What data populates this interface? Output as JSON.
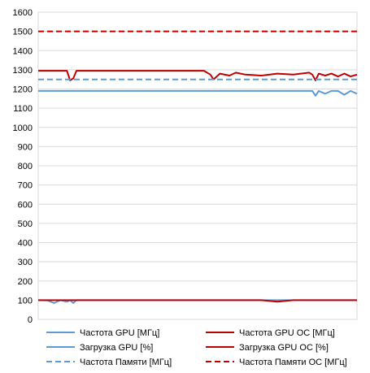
{
  "chart_data": {
    "type": "line",
    "ylim": [
      0,
      1600
    ],
    "yticks": [
      0,
      100,
      200,
      300,
      400,
      500,
      600,
      700,
      800,
      900,
      1000,
      1100,
      1200,
      1300,
      1400,
      1500,
      1600
    ],
    "xlim": [
      0,
      100
    ],
    "grid": true,
    "legend_position": "bottom",
    "x": [
      0,
      3,
      5,
      7,
      9,
      10,
      11,
      12,
      13,
      15,
      20,
      25,
      30,
      35,
      40,
      45,
      50,
      52,
      54,
      55,
      57,
      60,
      62,
      65,
      70,
      75,
      80,
      85,
      86,
      87,
      88,
      90,
      92,
      94,
      96,
      98,
      100
    ],
    "series": [
      {
        "name": "Частота GPU [МГц]",
        "color": "#5b9bd5",
        "dash": "solid",
        "values": [
          1190,
          1190,
          1190,
          1190,
          1190,
          1190,
          1190,
          1190,
          1190,
          1190,
          1190,
          1190,
          1190,
          1190,
          1190,
          1190,
          1190,
          1190,
          1190,
          1190,
          1190,
          1190,
          1190,
          1190,
          1190,
          1190,
          1190,
          1190,
          1190,
          1165,
          1190,
          1175,
          1190,
          1190,
          1170,
          1190,
          1175
        ]
      },
      {
        "name": "Частота GPU OC [МГц]",
        "color": "#c00000",
        "dash": "solid",
        "values": [
          1295,
          1295,
          1295,
          1295,
          1295,
          1245,
          1255,
          1295,
          1295,
          1295,
          1295,
          1295,
          1295,
          1295,
          1295,
          1295,
          1295,
          1295,
          1275,
          1250,
          1280,
          1270,
          1285,
          1275,
          1270,
          1280,
          1275,
          1285,
          1275,
          1245,
          1280,
          1270,
          1280,
          1265,
          1280,
          1265,
          1275
        ]
      },
      {
        "name": "Загрузка GPU [%]",
        "color": "#5b9bd5",
        "dash": "solid",
        "values": [
          100,
          98,
          85,
          100,
          92,
          100,
          85,
          100,
          100,
          100,
          100,
          100,
          100,
          100,
          100,
          100,
          100,
          100,
          100,
          100,
          100,
          100,
          100,
          100,
          100,
          100,
          100,
          100,
          100,
          100,
          100,
          100,
          100,
          100,
          100,
          100,
          100
        ]
      },
      {
        "name": "Загрузка GPU OC [%]",
        "color": "#c00000",
        "dash": "solid",
        "values": [
          100,
          100,
          100,
          100,
          100,
          100,
          100,
          100,
          100,
          100,
          100,
          100,
          100,
          100,
          100,
          100,
          100,
          100,
          100,
          100,
          100,
          100,
          100,
          100,
          100,
          92,
          100,
          100,
          100,
          100,
          100,
          100,
          100,
          100,
          100,
          100,
          100
        ]
      },
      {
        "name": "Частота Памяти [МГц]",
        "color": "#5b9bd5",
        "dash": "dashed",
        "values": [
          1250,
          1250,
          1250,
          1250,
          1250,
          1250,
          1250,
          1250,
          1250,
          1250,
          1250,
          1250,
          1250,
          1250,
          1250,
          1250,
          1250,
          1250,
          1250,
          1250,
          1250,
          1250,
          1250,
          1250,
          1250,
          1250,
          1250,
          1250,
          1250,
          1250,
          1250,
          1250,
          1250,
          1250,
          1250,
          1250,
          1250
        ]
      },
      {
        "name": "Частота Памяти OC [МГц]",
        "color": "#c00000",
        "dash": "dashed",
        "values": [
          1500,
          1500,
          1500,
          1500,
          1500,
          1500,
          1500,
          1500,
          1500,
          1500,
          1500,
          1500,
          1500,
          1500,
          1500,
          1500,
          1500,
          1500,
          1500,
          1500,
          1500,
          1500,
          1500,
          1500,
          1500,
          1500,
          1500,
          1500,
          1500,
          1500,
          1500,
          1500,
          1500,
          1500,
          1500,
          1500,
          1500
        ]
      }
    ]
  }
}
